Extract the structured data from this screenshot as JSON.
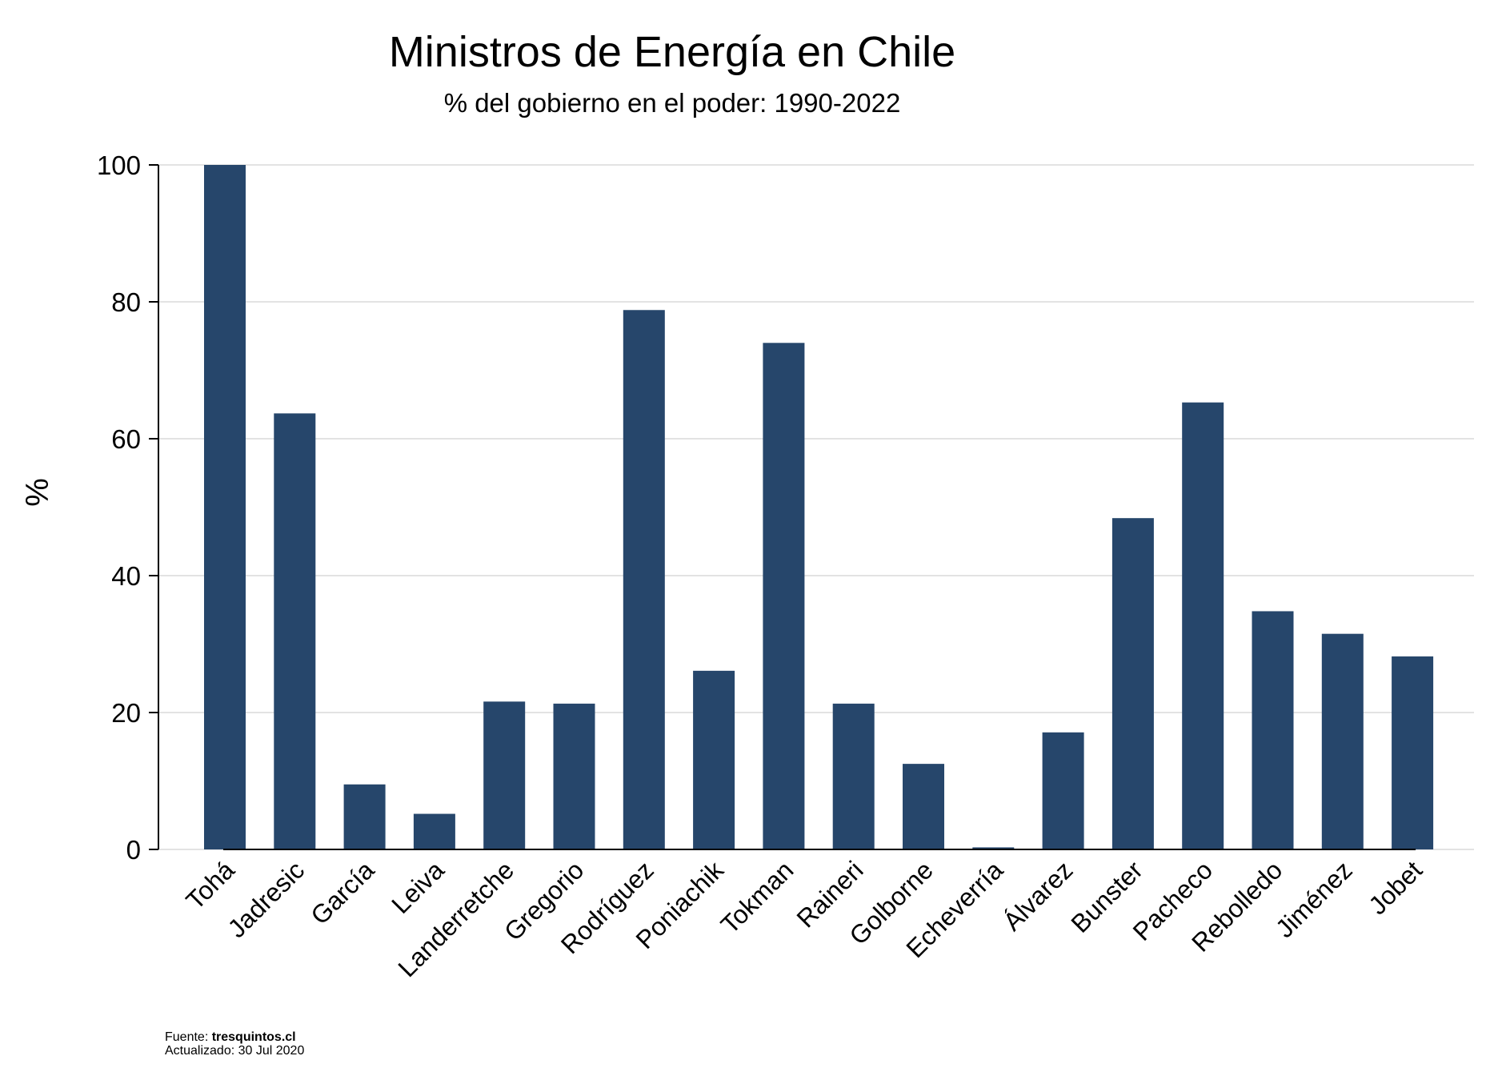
{
  "chart_data": {
    "type": "bar",
    "title": "Ministros de Energía en Chile",
    "subtitle": "% del gobierno en el poder: 1990-2022",
    "xlabel": "",
    "ylabel": "%",
    "ylim": [
      0,
      100
    ],
    "yticks": [
      0,
      20,
      40,
      60,
      80,
      100
    ],
    "grid": true,
    "legend": "none",
    "colors": {
      "bar": "#26466b",
      "grid": "#e3e3e3",
      "axis": "#000000"
    },
    "categories": [
      "Tohá",
      "Jadresic",
      "García",
      "Leiva",
      "Landerretche",
      "Gregorio",
      "Rodríguez",
      "Poniachik",
      "Tokman",
      "Raineri",
      "Golborne",
      "Echeverría",
      "Álvarez",
      "Bunster",
      "Pacheco",
      "Rebolledo",
      "Jiménez",
      "Jobet"
    ],
    "values": [
      100,
      63.7,
      9.5,
      5.2,
      21.6,
      21.3,
      78.8,
      26.1,
      74.0,
      21.3,
      12.5,
      0.3,
      17.1,
      48.4,
      65.3,
      34.8,
      31.5,
      28.2
    ]
  },
  "footer": {
    "source_label": "Fuente: ",
    "source_value": "tresquintos.cl",
    "updated": "Actualizado: 30 Jul 2020"
  }
}
